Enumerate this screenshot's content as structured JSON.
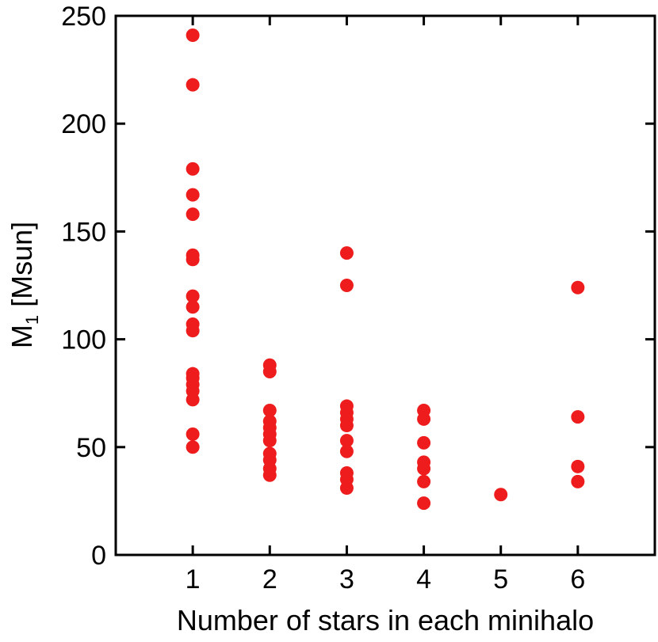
{
  "chart_data": {
    "type": "scatter",
    "xlabel": "Number of stars in each minihalo",
    "ylabel_main": "M",
    "ylabel_sub": "1",
    "ylabel_unit": " [Msun]",
    "xlim": [
      0,
      7
    ],
    "ylim": [
      0,
      250
    ],
    "x_ticks": [
      1,
      2,
      3,
      4,
      5,
      6
    ],
    "x_tick_labels": [
      "1",
      "2",
      "3",
      "4",
      "5",
      "6"
    ],
    "y_ticks": [
      0,
      50,
      100,
      150,
      200,
      250
    ],
    "y_tick_labels": [
      "0",
      "50",
      "100",
      "150",
      "200",
      "250"
    ],
    "grid": false,
    "marker_color": "#ee1c1c",
    "points": [
      {
        "x": 1,
        "y": 241
      },
      {
        "x": 1,
        "y": 218
      },
      {
        "x": 1,
        "y": 179
      },
      {
        "x": 1,
        "y": 167
      },
      {
        "x": 1,
        "y": 158
      },
      {
        "x": 1,
        "y": 139
      },
      {
        "x": 1,
        "y": 137
      },
      {
        "x": 1,
        "y": 120
      },
      {
        "x": 1,
        "y": 115
      },
      {
        "x": 1,
        "y": 107
      },
      {
        "x": 1,
        "y": 104
      },
      {
        "x": 1,
        "y": 84
      },
      {
        "x": 1,
        "y": 82
      },
      {
        "x": 1,
        "y": 79
      },
      {
        "x": 1,
        "y": 76
      },
      {
        "x": 1,
        "y": 72
      },
      {
        "x": 1,
        "y": 56
      },
      {
        "x": 1,
        "y": 50
      },
      {
        "x": 2,
        "y": 88
      },
      {
        "x": 2,
        "y": 85
      },
      {
        "x": 2,
        "y": 67
      },
      {
        "x": 2,
        "y": 62
      },
      {
        "x": 2,
        "y": 59
      },
      {
        "x": 2,
        "y": 56
      },
      {
        "x": 2,
        "y": 53
      },
      {
        "x": 2,
        "y": 47
      },
      {
        "x": 2,
        "y": 44
      },
      {
        "x": 2,
        "y": 40
      },
      {
        "x": 2,
        "y": 37
      },
      {
        "x": 3,
        "y": 140
      },
      {
        "x": 3,
        "y": 125
      },
      {
        "x": 3,
        "y": 69
      },
      {
        "x": 3,
        "y": 66
      },
      {
        "x": 3,
        "y": 63
      },
      {
        "x": 3,
        "y": 60
      },
      {
        "x": 3,
        "y": 53
      },
      {
        "x": 3,
        "y": 48
      },
      {
        "x": 3,
        "y": 38
      },
      {
        "x": 3,
        "y": 35
      },
      {
        "x": 3,
        "y": 31
      },
      {
        "x": 4,
        "y": 67
      },
      {
        "x": 4,
        "y": 63
      },
      {
        "x": 4,
        "y": 52
      },
      {
        "x": 4,
        "y": 43
      },
      {
        "x": 4,
        "y": 40
      },
      {
        "x": 4,
        "y": 34
      },
      {
        "x": 4,
        "y": 24
      },
      {
        "x": 5,
        "y": 28
      },
      {
        "x": 6,
        "y": 124
      },
      {
        "x": 6,
        "y": 64
      },
      {
        "x": 6,
        "y": 41
      },
      {
        "x": 6,
        "y": 34
      }
    ]
  }
}
